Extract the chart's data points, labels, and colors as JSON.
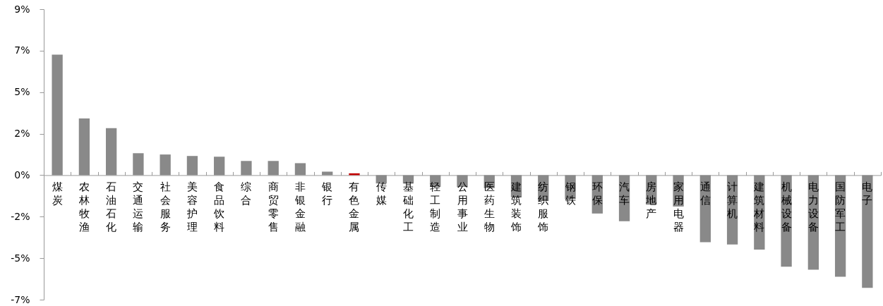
{
  "chart_data": {
    "type": "bar",
    "categories": [
      "煤炭",
      "农林牧渔",
      "石油石化",
      "交通运输",
      "社会服务",
      "美容护理",
      "食品饮料",
      "综合",
      "商贸零售",
      "非银金融",
      "银行",
      "有色金属",
      "传媒",
      "基础化工",
      "轻工制造",
      "公用事业",
      "医药生物",
      "建筑装饰",
      "纺织服饰",
      "钢铁",
      "环保",
      "汽车",
      "房地产",
      "家用电器",
      "通信",
      "计算机",
      "建筑材料",
      "机械设备",
      "电力设备",
      "国防军工",
      "电子"
    ],
    "values": [
      6.53,
      3.07,
      2.55,
      1.19,
      1.12,
      1.04,
      1.0,
      0.77,
      0.77,
      0.65,
      0.19,
      0.1,
      -0.45,
      -0.45,
      -0.64,
      -0.64,
      -0.7,
      -1.2,
      -1.4,
      -1.3,
      -2.08,
      -2.5,
      -1.6,
      -1.7,
      -3.63,
      -3.76,
      -4.04,
      -4.96,
      -5.13,
      -5.51,
      -6.11
    ],
    "colors": [
      "#898989",
      "#898989",
      "#898989",
      "#898989",
      "#898989",
      "#898989",
      "#898989",
      "#898989",
      "#898989",
      "#898989",
      "#898989",
      "#c00000",
      "#898989",
      "#898989",
      "#898989",
      "#898989",
      "#898989",
      "#898989",
      "#898989",
      "#898989",
      "#898989",
      "#898989",
      "#898989",
      "#898989",
      "#898989",
      "#898989",
      "#898989",
      "#898989",
      "#898989",
      "#898989",
      "#898989"
    ],
    "ylim": [
      -6.75,
      9
    ],
    "yticks": [
      {
        "value": -6.75,
        "label": "-7%"
      },
      {
        "value": -4.5,
        "label": "-5%"
      },
      {
        "value": -2.25,
        "label": "-2%"
      },
      {
        "value": 0,
        "label": "0%"
      },
      {
        "value": 2.25,
        "label": "2%"
      },
      {
        "value": 4.5,
        "label": "5%"
      },
      {
        "value": 6.75,
        "label": "7%"
      },
      {
        "value": 9,
        "label": "9%"
      }
    ],
    "grid": false
  }
}
